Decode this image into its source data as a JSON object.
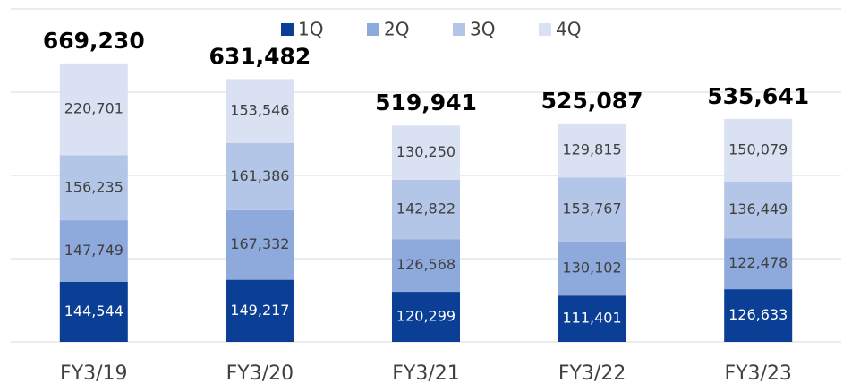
{
  "chart_data": {
    "type": "stacked-bar",
    "categories": [
      "FY3/19",
      "FY3/20",
      "FY3/21",
      "FY3/22",
      "FY3/23"
    ],
    "series": [
      {
        "name": "1Q",
        "color": "#0b3f96",
        "values": [
          144544,
          149217,
          120299,
          111401,
          126633
        ],
        "value_labels": [
          "144,544",
          "149,217",
          "120,299",
          "111,401",
          "126,633"
        ]
      },
      {
        "name": "2Q",
        "color": "#8ea9dc",
        "values": [
          147749,
          167332,
          126568,
          130102,
          122478
        ],
        "value_labels": [
          "147,749",
          "167,332",
          "126,568",
          "130,102",
          "122,478"
        ]
      },
      {
        "name": "3Q",
        "color": "#b4c6e7",
        "values": [
          156235,
          161386,
          142822,
          153767,
          136449
        ],
        "value_labels": [
          "156,235",
          "161,386",
          "142,822",
          "153,767",
          "136,449"
        ]
      },
      {
        "name": "4Q",
        "color": "#d9e1f2",
        "values": [
          220701,
          153546,
          130250,
          129815,
          150079
        ],
        "value_labels": [
          "220,701",
          "153,546",
          "130,250",
          "129,815",
          "150,079"
        ]
      }
    ],
    "totals": [
      669230,
      631482,
      519941,
      525087,
      535641
    ],
    "total_labels": [
      "669,230",
      "631,482",
      "519,941",
      "525,087",
      "535,641"
    ],
    "ylim": [
      0,
      800000
    ],
    "yticks": [
      0,
      200000,
      400000,
      600000,
      800000
    ],
    "grid": true,
    "legend": "top"
  }
}
